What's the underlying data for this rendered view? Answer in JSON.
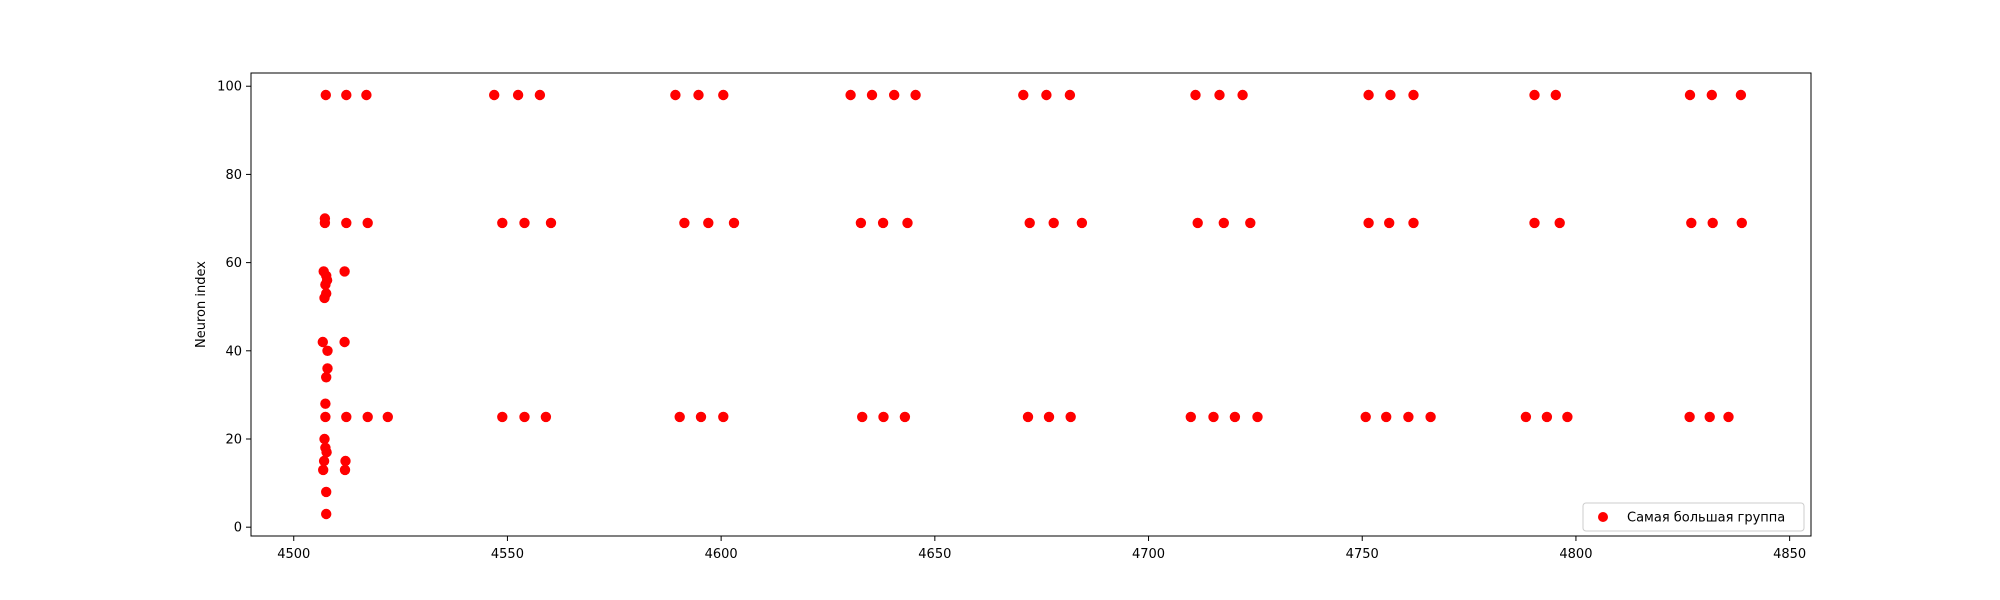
{
  "chart_data": {
    "type": "scatter",
    "title": "",
    "xlabel": "",
    "ylabel": "Neuron index",
    "xlim": [
      4490,
      4855
    ],
    "ylim": [
      -2,
      103
    ],
    "x_ticks": [
      4500,
      4550,
      4600,
      4650,
      4700,
      4750,
      4800,
      4850
    ],
    "y_ticks": [
      0,
      20,
      40,
      60,
      80,
      100
    ],
    "grid": false,
    "legend_position": "lower-right",
    "series": [
      {
        "name": "Самая большая группа",
        "color": "#ff0000",
        "points": [
          [
            4507.5,
            98
          ],
          [
            4512.3,
            98
          ],
          [
            4517.0,
            98
          ],
          [
            4546.9,
            98
          ],
          [
            4552.5,
            98
          ],
          [
            4557.6,
            98
          ],
          [
            4589.3,
            98
          ],
          [
            4594.7,
            98
          ],
          [
            4600.5,
            98
          ],
          [
            4630.3,
            98
          ],
          [
            4635.3,
            98
          ],
          [
            4640.5,
            98
          ],
          [
            4645.5,
            98
          ],
          [
            4670.7,
            98
          ],
          [
            4676.1,
            98
          ],
          [
            4681.6,
            98
          ],
          [
            4711.0,
            98
          ],
          [
            4716.6,
            98
          ],
          [
            4722.0,
            98
          ],
          [
            4751.5,
            98
          ],
          [
            4756.6,
            98
          ],
          [
            4762.0,
            98
          ],
          [
            4790.3,
            98
          ],
          [
            4795.3,
            98
          ],
          [
            4826.7,
            98
          ],
          [
            4831.8,
            98
          ],
          [
            4838.6,
            98
          ],
          [
            4507.3,
            70
          ],
          [
            4507.3,
            69
          ],
          [
            4512.3,
            69
          ],
          [
            4517.3,
            69
          ],
          [
            4548.8,
            69
          ],
          [
            4554.0,
            69
          ],
          [
            4560.2,
            69
          ],
          [
            4591.4,
            69
          ],
          [
            4597.0,
            69
          ],
          [
            4603.0,
            69
          ],
          [
            4632.7,
            69
          ],
          [
            4637.9,
            69
          ],
          [
            4643.6,
            69
          ],
          [
            4672.2,
            69
          ],
          [
            4677.8,
            69
          ],
          [
            4684.4,
            69
          ],
          [
            4711.5,
            69
          ],
          [
            4717.6,
            69
          ],
          [
            4723.8,
            69
          ],
          [
            4751.5,
            69
          ],
          [
            4756.3,
            69
          ],
          [
            4762.0,
            69
          ],
          [
            4790.3,
            69
          ],
          [
            4796.2,
            69
          ],
          [
            4827.0,
            69
          ],
          [
            4832.0,
            69
          ],
          [
            4838.8,
            69
          ],
          [
            4507.0,
            58
          ],
          [
            4507.6,
            57
          ],
          [
            4507.8,
            56
          ],
          [
            4507.4,
            55
          ],
          [
            4507.6,
            53
          ],
          [
            4507.2,
            52
          ],
          [
            4511.9,
            58
          ],
          [
            4506.8,
            42
          ],
          [
            4511.9,
            42
          ],
          [
            4507.9,
            40
          ],
          [
            4507.9,
            36
          ],
          [
            4507.6,
            34
          ],
          [
            4507.4,
            28
          ],
          [
            4507.4,
            25
          ],
          [
            4512.3,
            25
          ],
          [
            4517.3,
            25
          ],
          [
            4522.0,
            25
          ],
          [
            4548.8,
            25
          ],
          [
            4554.0,
            25
          ],
          [
            4559.0,
            25
          ],
          [
            4590.3,
            25
          ],
          [
            4595.3,
            25
          ],
          [
            4600.5,
            25
          ],
          [
            4633.0,
            25
          ],
          [
            4638.0,
            25
          ],
          [
            4643.0,
            25
          ],
          [
            4671.8,
            25
          ],
          [
            4676.7,
            25
          ],
          [
            4681.8,
            25
          ],
          [
            4709.9,
            25
          ],
          [
            4715.2,
            25
          ],
          [
            4720.2,
            25
          ],
          [
            4725.5,
            25
          ],
          [
            4750.8,
            25
          ],
          [
            4755.6,
            25
          ],
          [
            4760.8,
            25
          ],
          [
            4766.0,
            25
          ],
          [
            4788.3,
            25
          ],
          [
            4793.2,
            25
          ],
          [
            4798.0,
            25
          ],
          [
            4826.6,
            25
          ],
          [
            4831.3,
            25
          ],
          [
            4835.7,
            25
          ],
          [
            4507.2,
            20
          ],
          [
            4507.4,
            18
          ],
          [
            4507.7,
            17
          ],
          [
            4507.1,
            15
          ],
          [
            4512.1,
            15
          ],
          [
            4506.9,
            13
          ],
          [
            4512.0,
            13
          ],
          [
            4507.6,
            8
          ],
          [
            4507.6,
            3
          ]
        ]
      }
    ]
  }
}
